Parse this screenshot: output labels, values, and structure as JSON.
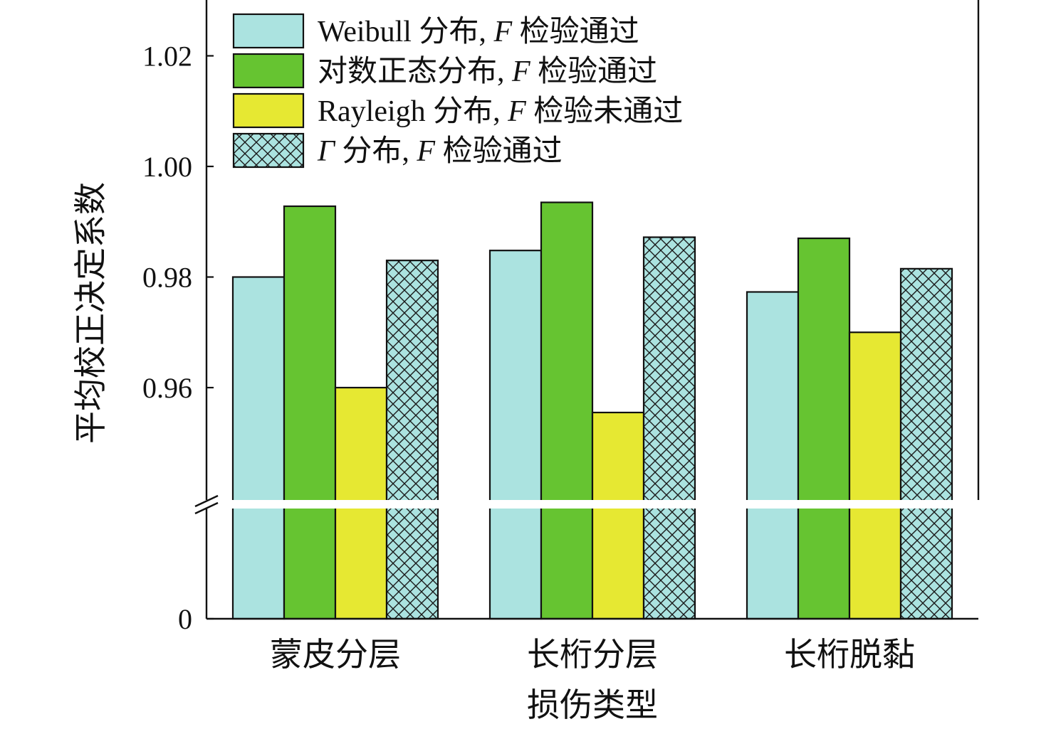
{
  "chart_data": {
    "type": "bar",
    "xlabel": "损伤类型",
    "ylabel": "平均校正决定系数",
    "categories": [
      "蒙皮分层",
      "长桁分层",
      "长桁脱黏"
    ],
    "series": [
      {
        "name": "Weibull 分布, F 检验通过",
        "name_parts": [
          "Weibull 分布, ",
          "F",
          " 检验通过"
        ],
        "color": "#abe3e0",
        "pattern": "solid",
        "values": [
          0.98,
          0.9848,
          0.9773
        ]
      },
      {
        "name": "对数正态分布, F 检验通过",
        "name_parts": [
          "对数正态分布, ",
          "F",
          " 检验通过"
        ],
        "color": "#66c431",
        "pattern": "solid",
        "values": [
          0.9928,
          0.9935,
          0.987
        ]
      },
      {
        "name": "Rayleigh 分布, F 检验未通过",
        "name_parts": [
          "Rayleigh 分布, ",
          "F",
          " 检验未通过"
        ],
        "color": "#e6e832",
        "pattern": "solid",
        "values": [
          0.96,
          0.9555,
          0.97
        ]
      },
      {
        "name": "Γ 分布, F 检验通过",
        "name_parts": [
          "Γ",
          " 分布, ",
          "F",
          " 检验通过"
        ],
        "name_italic": [
          true,
          false,
          true,
          false
        ],
        "color": "#abe3e0",
        "pattern": "crosshatch",
        "values": [
          0.983,
          0.9872,
          0.9815
        ]
      }
    ],
    "yticks": [
      "0",
      "0.96",
      "0.98",
      "1.00",
      "1.02"
    ],
    "ytick_values": [
      0,
      0.96,
      0.98,
      1.0,
      1.02
    ],
    "ylim_upper": [
      0.94,
      1.03
    ],
    "y_axis_break": true,
    "legend_position": "top",
    "grid": false
  }
}
